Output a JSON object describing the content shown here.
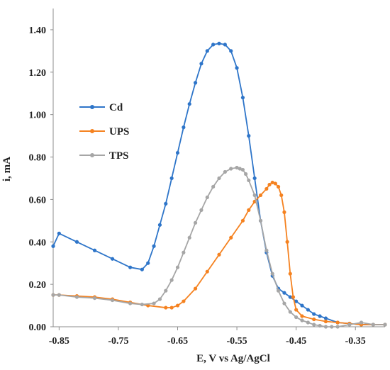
{
  "chart_data": {
    "type": "line",
    "xlabel": "E, V vs Ag/AgCl",
    "ylabel": "i, mA",
    "xlim": [
      -0.86,
      -0.3
    ],
    "ylim": [
      0,
      1.5
    ],
    "xticks": [
      -0.85,
      -0.75,
      -0.65,
      -0.55,
      -0.45,
      -0.35
    ],
    "xtick_labels": [
      "-0.85",
      "-0.75",
      "-0.65",
      "-0.55",
      "-0.45",
      "-0.35"
    ],
    "yticks": [
      0,
      0.2,
      0.4,
      0.6,
      0.8,
      1.0,
      1.2,
      1.4
    ],
    "ytick_labels": [
      "0.00",
      "0.20",
      "0.40",
      "0.60",
      "0.80",
      "1.00",
      "1.20",
      "1.40"
    ],
    "grid": false,
    "legend_position": "left-center",
    "series": [
      {
        "name": "Cd",
        "color": "#2E75C9",
        "x": [
          -0.86,
          -0.85,
          -0.82,
          -0.79,
          -0.76,
          -0.73,
          -0.71,
          -0.7,
          -0.69,
          -0.68,
          -0.67,
          -0.66,
          -0.65,
          -0.64,
          -0.63,
          -0.62,
          -0.61,
          -0.6,
          -0.59,
          -0.58,
          -0.57,
          -0.56,
          -0.55,
          -0.54,
          -0.53,
          -0.52,
          -0.51,
          -0.5,
          -0.49,
          -0.48,
          -0.47,
          -0.46,
          -0.45,
          -0.44,
          -0.43,
          -0.42,
          -0.41,
          -0.4,
          -0.38,
          -0.36,
          -0.34,
          -0.32,
          -0.3
        ],
        "y": [
          0.38,
          0.44,
          0.4,
          0.36,
          0.32,
          0.28,
          0.27,
          0.3,
          0.38,
          0.48,
          0.58,
          0.7,
          0.82,
          0.94,
          1.05,
          1.15,
          1.24,
          1.3,
          1.33,
          1.335,
          1.33,
          1.3,
          1.22,
          1.08,
          0.9,
          0.7,
          0.5,
          0.35,
          0.24,
          0.18,
          0.16,
          0.14,
          0.12,
          0.1,
          0.08,
          0.06,
          0.05,
          0.04,
          0.02,
          0.015,
          0.01,
          0.01,
          0.01
        ]
      },
      {
        "name": "UPS",
        "color": "#F58220",
        "x": [
          -0.86,
          -0.85,
          -0.82,
          -0.79,
          -0.76,
          -0.73,
          -0.7,
          -0.67,
          -0.66,
          -0.65,
          -0.64,
          -0.62,
          -0.6,
          -0.58,
          -0.56,
          -0.54,
          -0.53,
          -0.52,
          -0.51,
          -0.5,
          -0.495,
          -0.49,
          -0.485,
          -0.48,
          -0.475,
          -0.47,
          -0.465,
          -0.46,
          -0.455,
          -0.45,
          -0.44,
          -0.42,
          -0.4,
          -0.38,
          -0.36,
          -0.34,
          -0.32,
          -0.3
        ],
        "y": [
          0.15,
          0.15,
          0.145,
          0.14,
          0.13,
          0.115,
          0.1,
          0.09,
          0.09,
          0.1,
          0.12,
          0.18,
          0.26,
          0.34,
          0.42,
          0.5,
          0.55,
          0.59,
          0.62,
          0.65,
          0.67,
          0.68,
          0.675,
          0.66,
          0.62,
          0.54,
          0.4,
          0.25,
          0.14,
          0.08,
          0.05,
          0.035,
          0.025,
          0.02,
          0.015,
          0.01,
          0.01,
          0.01
        ]
      },
      {
        "name": "TPS",
        "color": "#A6A6A6",
        "x": [
          -0.86,
          -0.85,
          -0.82,
          -0.79,
          -0.76,
          -0.73,
          -0.71,
          -0.69,
          -0.68,
          -0.67,
          -0.66,
          -0.65,
          -0.64,
          -0.63,
          -0.62,
          -0.61,
          -0.6,
          -0.59,
          -0.58,
          -0.57,
          -0.56,
          -0.55,
          -0.545,
          -0.54,
          -0.535,
          -0.53,
          -0.52,
          -0.51,
          -0.5,
          -0.49,
          -0.48,
          -0.47,
          -0.46,
          -0.45,
          -0.44,
          -0.43,
          -0.42,
          -0.41,
          -0.4,
          -0.39,
          -0.38,
          -0.36,
          -0.34,
          -0.32,
          -0.3
        ],
        "y": [
          0.15,
          0.15,
          0.14,
          0.135,
          0.125,
          0.11,
          0.105,
          0.11,
          0.13,
          0.17,
          0.22,
          0.28,
          0.35,
          0.42,
          0.49,
          0.55,
          0.61,
          0.66,
          0.7,
          0.73,
          0.745,
          0.75,
          0.745,
          0.74,
          0.72,
          0.69,
          0.62,
          0.5,
          0.36,
          0.25,
          0.17,
          0.11,
          0.07,
          0.045,
          0.03,
          0.02,
          0.01,
          0.005,
          0.0,
          0.0,
          0.0,
          0.01,
          0.02,
          0.01,
          0.01
        ]
      }
    ]
  }
}
